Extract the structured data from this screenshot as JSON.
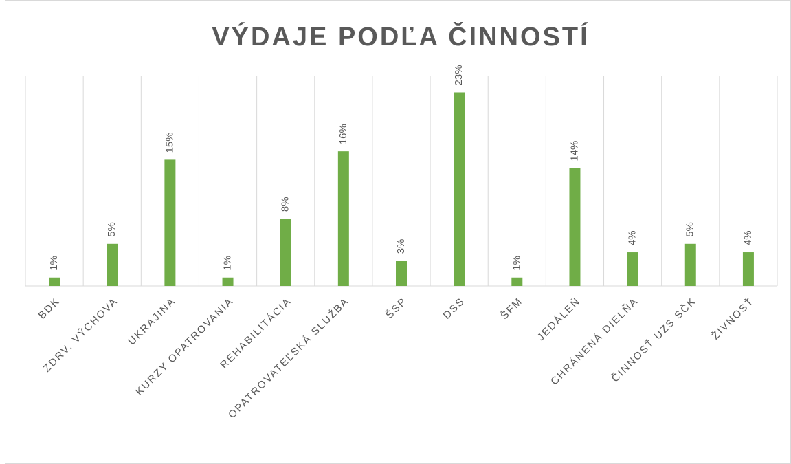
{
  "chart_data": {
    "type": "bar",
    "title": "VÝDAJE PODĽA ČINNOSTÍ",
    "categories": [
      "BDK",
      "ZDRV. VÝCHOVA",
      "UKRAJINA",
      "KURZY OPATROVANIA",
      "REHABILITÁCIA",
      "OPATROVATEĽSKÁ SLUŽBA",
      "ŠSP",
      "DSS",
      "ŠFM",
      "JEDÁLEŇ",
      "CHRÁNENÁ DIELŇA",
      "ČINNOSŤ UZS SČK",
      "ŽIVNOSŤ"
    ],
    "values": [
      1,
      5,
      15,
      1,
      8,
      16,
      3,
      23,
      1,
      14,
      4,
      5,
      4
    ],
    "value_labels": [
      "1%",
      "5%",
      "15%",
      "1%",
      "8%",
      "16%",
      "3%",
      "23%",
      "1%",
      "14%",
      "4%",
      "5%",
      "4%"
    ],
    "color": "#70ad47",
    "ylim": [
      0,
      25
    ]
  }
}
